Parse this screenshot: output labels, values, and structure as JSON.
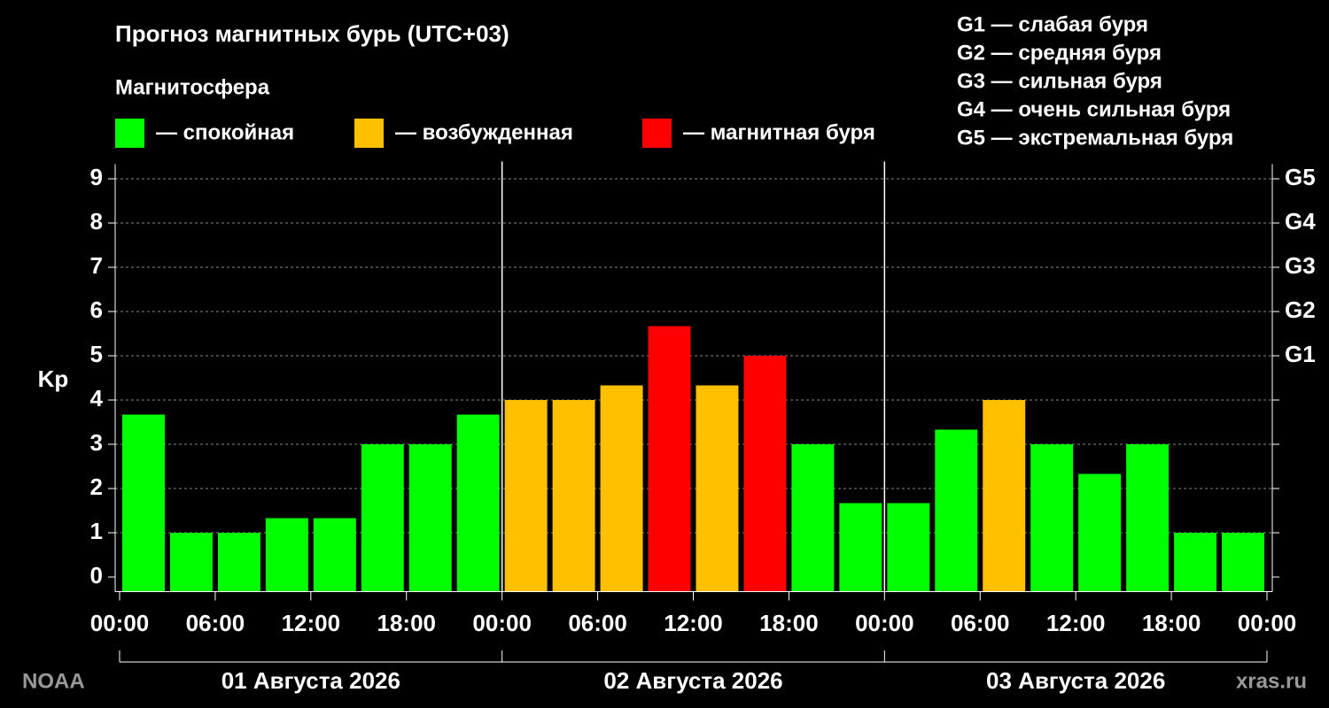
{
  "chart_data": {
    "type": "histogram",
    "title": "Прогноз магнитных бурь (UTC+03)",
    "legend_title": "Магнитосфера",
    "legend": [
      {
        "label": "— спокойная",
        "color": "#00ff00"
      },
      {
        "label": "— возбужденная",
        "color": "#ffc000"
      },
      {
        "label": "— магнитная буря",
        "color": "#ff0000"
      }
    ],
    "scale_legend": [
      "G1 — слабая буря",
      "G2 — средняя буря",
      "G3 — сильная буря",
      "G4 — очень сильная буря",
      "G5 — экстремальная буря"
    ],
    "y_label": "Kp",
    "bins": [
      0,
      3,
      6,
      9,
      12,
      15,
      18,
      21,
      24,
      27,
      30,
      33,
      36,
      39,
      42,
      45,
      48,
      51,
      54,
      57,
      60,
      63,
      66,
      69,
      72
    ],
    "values": [
      3.67,
      1,
      1,
      1.33,
      1.33,
      3,
      3,
      3.67,
      4,
      4,
      4.33,
      5.67,
      4.33,
      5,
      3,
      1.67,
      1.67,
      3.33,
      4,
      3,
      2.33,
      3,
      1,
      1
    ],
    "colors": [
      "#00ff00",
      "#00ff00",
      "#00ff00",
      "#00ff00",
      "#00ff00",
      "#00ff00",
      "#00ff00",
      "#00ff00",
      "#ffc000",
      "#ffc000",
      "#ffc000",
      "#ff0000",
      "#ffc000",
      "#ff0000",
      "#00ff00",
      "#00ff00",
      "#00ff00",
      "#00ff00",
      "#ffc000",
      "#00ff00",
      "#00ff00",
      "#00ff00",
      "#00ff00",
      "#00ff00"
    ],
    "xlim": [
      0,
      72
    ],
    "xticks": [
      {
        "value": 0,
        "label": "00:00"
      },
      {
        "value": 6,
        "label": "06:00"
      },
      {
        "value": 12,
        "label": "12:00"
      },
      {
        "value": 18,
        "label": "18:00"
      },
      {
        "value": 24,
        "label": "00:00"
      },
      {
        "value": 30,
        "label": "06:00"
      },
      {
        "value": 36,
        "label": "12:00"
      },
      {
        "value": 42,
        "label": "18:00"
      },
      {
        "value": 48,
        "label": "00:00"
      },
      {
        "value": 54,
        "label": "06:00"
      },
      {
        "value": 60,
        "label": "12:00"
      },
      {
        "value": 66,
        "label": "18:00"
      },
      {
        "value": 72,
        "label": "00:00"
      }
    ],
    "days": [
      "01 Августа 2026",
      "02 Августа 2026",
      "03 Августа 2026"
    ],
    "ylim": [
      -0.33,
      9.33
    ],
    "yticks": [
      0,
      1,
      2,
      3,
      4,
      5,
      6,
      7,
      8,
      9
    ],
    "y2lim": [
      -0.33,
      9.33
    ],
    "y2ticks": [
      {
        "value": 5,
        "label": "G1"
      },
      {
        "value": 6,
        "label": "G2"
      },
      {
        "value": 7,
        "label": "G3"
      },
      {
        "value": 8,
        "label": "G4"
      },
      {
        "value": 9,
        "label": "G5"
      }
    ],
    "grid": true,
    "source": "NOAA",
    "credit": "xras.ru"
  }
}
